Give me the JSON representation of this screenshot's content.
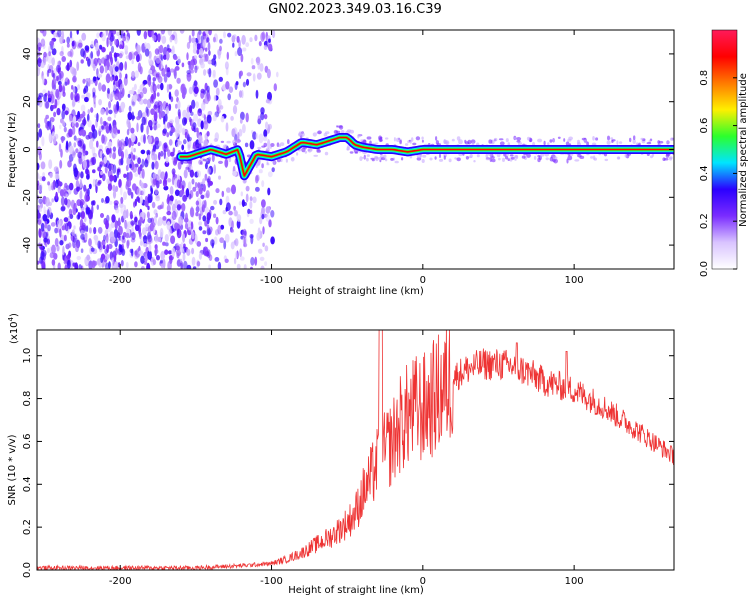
{
  "figure": {
    "title": "GN02.2023.349.03.16.C39"
  },
  "chart_data": [
    {
      "type": "heatmap",
      "xlabel": "Height of straight line (km)",
      "ylabel": "Frequency (Hz)",
      "xlim": [
        -255,
        166
      ],
      "ylim": [
        -50,
        50
      ],
      "xticks": [
        -200,
        -100,
        0,
        100
      ],
      "yticks": [
        -40,
        -20,
        0,
        20,
        40
      ],
      "ridge": {
        "x": [
          -155,
          -140,
          -130,
          -122,
          -118,
          -110,
          -100,
          -90,
          -80,
          -70,
          -60,
          -55,
          -50,
          -45,
          -40,
          -30,
          -20,
          -10,
          0,
          20,
          60,
          100,
          140,
          166
        ],
        "y": [
          -3,
          0,
          -2,
          0,
          -11,
          -2,
          -3,
          -1,
          3,
          2,
          4,
          5,
          5,
          2,
          1,
          0,
          0,
          -1,
          0,
          0,
          0,
          0,
          0,
          0
        ]
      },
      "colorbar": {
        "label": "Normalized spectral amplitude",
        "range": [
          0,
          1
        ],
        "ticks": [
          "0.0",
          "0.2",
          "0.4",
          "0.6",
          "0.8"
        ],
        "colors": [
          "#ffffff",
          "#d9c4ff",
          "#7a2cff",
          "#2b00ff",
          "#00e5ff",
          "#2cff2c",
          "#ffef00",
          "#ff7a00",
          "#ff0000",
          "#ff1a5a"
        ]
      }
    },
    {
      "type": "line",
      "xlabel": "Height of straight line (km)",
      "ylabel": "SNR (10 * v/v)",
      "y_multiplier_label": "(x10",
      "y_multiplier_exp": "4",
      "xlim": [
        -255,
        166
      ],
      "ylim": [
        0,
        1.12
      ],
      "xticks": [
        -200,
        -100,
        0,
        100
      ],
      "yticks": [
        "0.0",
        "0.2",
        "0.4",
        "0.6",
        "0.8",
        "1.0"
      ],
      "line_color": "#ee3333",
      "series": [
        {
          "x": [
            -255,
            -220,
            -180,
            -150,
            -120,
            -100,
            -90,
            -80,
            -70,
            -60,
            -50,
            -45,
            -40,
            -35,
            -30,
            -25,
            -20,
            -15,
            -10,
            -5,
            0,
            10,
            20,
            30,
            40,
            50,
            60,
            70,
            80,
            90,
            100,
            110,
            120,
            130,
            140,
            150,
            160,
            166
          ],
          "values": [
            0.01,
            0.01,
            0.01,
            0.01,
            0.02,
            0.03,
            0.05,
            0.08,
            0.12,
            0.16,
            0.22,
            0.26,
            0.35,
            0.42,
            0.5,
            0.55,
            0.6,
            0.68,
            0.72,
            0.75,
            0.75,
            0.82,
            0.9,
            0.94,
            0.96,
            0.96,
            0.95,
            0.92,
            0.88,
            0.86,
            0.84,
            0.8,
            0.76,
            0.71,
            0.66,
            0.61,
            0.56,
            0.53
          ]
        }
      ]
    }
  ]
}
